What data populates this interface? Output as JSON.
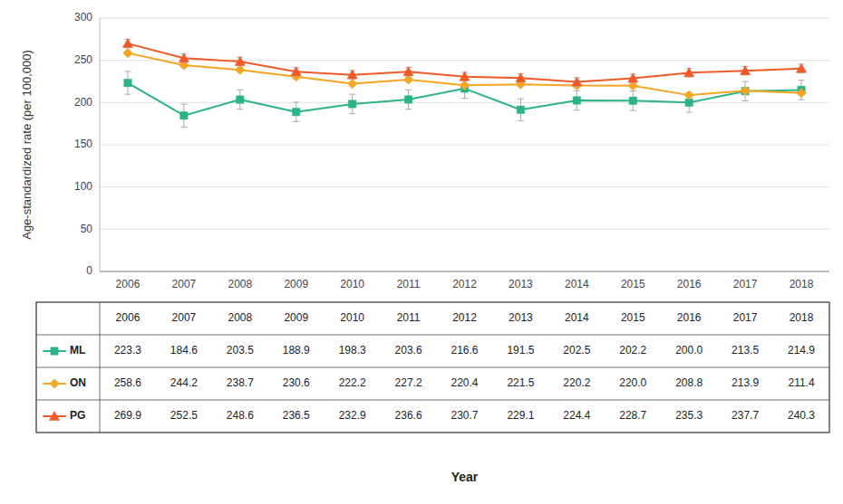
{
  "chart_data": {
    "type": "line",
    "ylabel": "Age-standardized rate (per 100,000)",
    "xlabel": "Year",
    "x": [
      2006,
      2007,
      2008,
      2009,
      2010,
      2011,
      2012,
      2013,
      2014,
      2015,
      2016,
      2017,
      2018
    ],
    "xlim": [
      2005.5,
      2018.5
    ],
    "xticks": [
      2006,
      2007,
      2008,
      2009,
      2010,
      2011,
      2012,
      2013,
      2014,
      2015,
      2016,
      2017,
      2018
    ],
    "ylim": [
      0,
      300
    ],
    "yticks": [
      0,
      50,
      100,
      150,
      200,
      250,
      300
    ],
    "grid": true,
    "series": [
      {
        "name": "ML",
        "color": "#2db389",
        "marker": "square",
        "values": [
          223.3,
          184.6,
          203.5,
          188.9,
          198.3,
          203.6,
          216.6,
          191.5,
          202.5,
          202.2,
          200.0,
          213.5,
          214.9
        ],
        "value_labels": [
          "223.3",
          "184.6",
          "203.5",
          "188.9",
          "198.3",
          "203.6",
          "216.6",
          "191.5",
          "202.5",
          "202.2",
          "200.0",
          "213.5",
          "214.9"
        ],
        "errors": [
          13.5,
          13.5,
          11.5,
          11.5,
          11.5,
          11.5,
          11.5,
          13.0,
          11.5,
          11.5,
          11.5,
          11.5,
          11.5
        ]
      },
      {
        "name": "ON",
        "color": "#f5a623",
        "marker": "diamond",
        "values": [
          258.6,
          244.2,
          238.7,
          230.6,
          222.2,
          227.2,
          220.4,
          221.5,
          220.2,
          220.0,
          208.8,
          213.9,
          211.4
        ],
        "value_labels": [
          "258.6",
          "244.2",
          "238.7",
          "230.6",
          "222.2",
          "227.2",
          "220.4",
          "221.5",
          "220.2",
          "220.0",
          "208.8",
          "213.9",
          "211.4"
        ],
        "errors": [
          2.5,
          2.5,
          2.5,
          2.5,
          2.5,
          2.5,
          2.5,
          2.5,
          2.5,
          2.5,
          2.5,
          2.5,
          2.5
        ]
      },
      {
        "name": "PG",
        "color": "#f05a28",
        "marker": "triangle",
        "values": [
          269.9,
          252.5,
          248.6,
          236.5,
          232.9,
          236.6,
          230.7,
          229.1,
          224.4,
          228.7,
          235.3,
          237.7,
          240.3
        ],
        "value_labels": [
          "269.9",
          "252.5",
          "248.6",
          "236.5",
          "232.9",
          "236.6",
          "230.7",
          "229.1",
          "224.4",
          "228.7",
          "235.3",
          "237.7",
          "240.3"
        ],
        "errors": [
          5.0,
          5.0,
          5.0,
          5.0,
          5.0,
          5.0,
          5.0,
          5.0,
          5.0,
          5.0,
          5.0,
          5.0,
          5.0
        ]
      }
    ]
  }
}
